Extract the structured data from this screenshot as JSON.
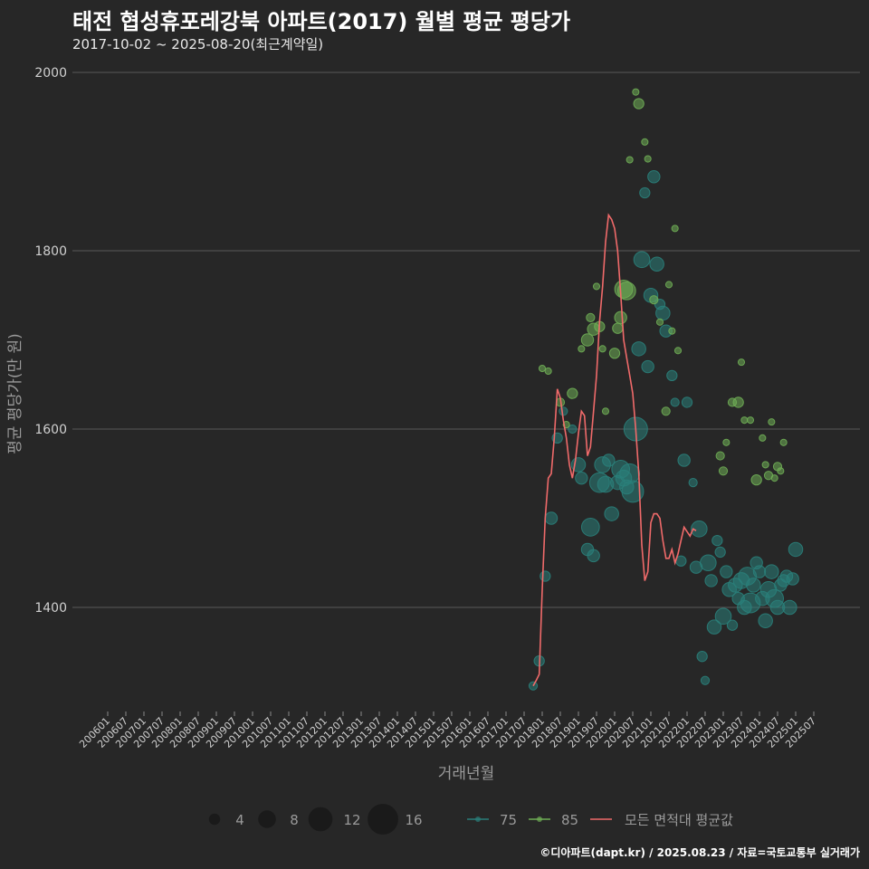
{
  "title": "태전 협성휴포레강북 아파트(2017) 월별 평균 평당가",
  "subtitle": "2017-10-02 ~ 2025-08-20(최근계약일)",
  "footer": "©디아파트(dapt.kr) / 2025.08.23 / 자료=국토교통부 실거래가",
  "colors": {
    "background": "#272727",
    "grid": "#5a5a5a",
    "area75": "#2a7f7a",
    "area85": "#6fae55",
    "avg": "#f06a6a"
  },
  "chart_data": {
    "type": "scatter",
    "xlabel": "거래년월",
    "ylabel": "평균 평당가(만 원)",
    "ylim": [
      1280,
      2010
    ],
    "yticks": [
      1400,
      1600,
      1800,
      2000
    ],
    "xticks": [
      "200601",
      "200607",
      "200701",
      "200707",
      "200801",
      "200807",
      "200901",
      "200907",
      "201001",
      "201007",
      "201101",
      "201107",
      "201201",
      "201207",
      "201301",
      "201307",
      "201401",
      "201407",
      "201501",
      "201507",
      "201601",
      "201607",
      "201701",
      "201707",
      "201801",
      "201807",
      "201901",
      "201907",
      "202001",
      "202007",
      "202101",
      "202107",
      "202201",
      "202207",
      "202301",
      "202307",
      "202401",
      "202407",
      "202501",
      "202507"
    ],
    "legend": {
      "size_title": "",
      "sizes": [
        4,
        8,
        12,
        16
      ],
      "size_labels": [
        "4",
        "8",
        "12",
        "16"
      ],
      "series_labels": [
        "75",
        "85",
        "모든 면적대 평균값"
      ]
    },
    "series": [
      {
        "name": "75",
        "points": [
          [
            "201710",
            1312,
            2
          ],
          [
            "201712",
            1340,
            3
          ],
          [
            "201802",
            1435,
            3
          ],
          [
            "201804",
            1500,
            4
          ],
          [
            "201806",
            1590,
            3
          ],
          [
            "201808",
            1620,
            2
          ],
          [
            "201811",
            1600,
            2
          ],
          [
            "201901",
            1560,
            5
          ],
          [
            "201902",
            1545,
            4
          ],
          [
            "201904",
            1465,
            4
          ],
          [
            "201905",
            1490,
            7
          ],
          [
            "201906",
            1458,
            4
          ],
          [
            "201908",
            1540,
            8
          ],
          [
            "201909",
            1560,
            6
          ],
          [
            "201910",
            1538,
            6
          ],
          [
            "201911",
            1565,
            4
          ],
          [
            "201912",
            1505,
            5
          ],
          [
            "202002",
            1540,
            5
          ],
          [
            "202003",
            1555,
            7
          ],
          [
            "202004",
            1545,
            6
          ],
          [
            "202005",
            1535,
            5
          ],
          [
            "202006",
            1550,
            8
          ],
          [
            "202007",
            1530,
            9
          ],
          [
            "202008",
            1600,
            10
          ],
          [
            "202009",
            1690,
            5
          ],
          [
            "202010",
            1790,
            6
          ],
          [
            "202011",
            1865,
            3
          ],
          [
            "202012",
            1670,
            4
          ],
          [
            "202101",
            1750,
            5
          ],
          [
            "202102",
            1883,
            4
          ],
          [
            "202103",
            1785,
            5
          ],
          [
            "202104",
            1740,
            3
          ],
          [
            "202105",
            1730,
            5
          ],
          [
            "202106",
            1710,
            4
          ],
          [
            "202108",
            1660,
            3
          ],
          [
            "202109",
            1630,
            2
          ],
          [
            "202111",
            1452,
            3
          ],
          [
            "202112",
            1565,
            4
          ],
          [
            "202201",
            1630,
            3
          ],
          [
            "202203",
            1540,
            2
          ],
          [
            "202204",
            1445,
            4
          ],
          [
            "202205",
            1488,
            6
          ],
          [
            "202206",
            1345,
            3
          ],
          [
            "202207",
            1318,
            2
          ],
          [
            "202208",
            1450,
            6
          ],
          [
            "202209",
            1430,
            4
          ],
          [
            "202210",
            1378,
            5
          ],
          [
            "202211",
            1475,
            3
          ],
          [
            "202212",
            1462,
            3
          ],
          [
            "202301",
            1390,
            6
          ],
          [
            "202302",
            1440,
            4
          ],
          [
            "202303",
            1420,
            5
          ],
          [
            "202304",
            1380,
            3
          ],
          [
            "202305",
            1425,
            5
          ],
          [
            "202306",
            1410,
            4
          ],
          [
            "202307",
            1430,
            6
          ],
          [
            "202308",
            1400,
            5
          ],
          [
            "202309",
            1435,
            7
          ],
          [
            "202310",
            1405,
            8
          ],
          [
            "202311",
            1425,
            5
          ],
          [
            "202312",
            1450,
            4
          ],
          [
            "202401",
            1440,
            4
          ],
          [
            "202402",
            1410,
            5
          ],
          [
            "202403",
            1385,
            5
          ],
          [
            "202404",
            1420,
            6
          ],
          [
            "202405",
            1440,
            5
          ],
          [
            "202406",
            1410,
            7
          ],
          [
            "202407",
            1400,
            5
          ],
          [
            "202408",
            1425,
            4
          ],
          [
            "202409",
            1430,
            4
          ],
          [
            "202410",
            1435,
            4
          ],
          [
            "202411",
            1400,
            5
          ],
          [
            "202412",
            1432,
            4
          ],
          [
            "202501",
            1465,
            5
          ]
        ]
      },
      {
        "name": "85",
        "points": [
          [
            "201801",
            1668,
            1
          ],
          [
            "201803",
            1665,
            1
          ],
          [
            "201807",
            1630,
            2
          ],
          [
            "201809",
            1605,
            1
          ],
          [
            "201811",
            1640,
            3
          ],
          [
            "201902",
            1690,
            1
          ],
          [
            "201904",
            1700,
            4
          ],
          [
            "201905",
            1725,
            2
          ],
          [
            "201906",
            1712,
            4
          ],
          [
            "201907",
            1760,
            1
          ],
          [
            "201908",
            1715,
            3
          ],
          [
            "201909",
            1690,
            1
          ],
          [
            "201910",
            1620,
            1
          ],
          [
            "202001",
            1685,
            3
          ],
          [
            "202002",
            1713,
            3
          ],
          [
            "202003",
            1725,
            4
          ],
          [
            "202004",
            1757,
            7
          ],
          [
            "202005",
            1755,
            7
          ],
          [
            "202006",
            1902,
            1
          ],
          [
            "202008",
            1978,
            1
          ],
          [
            "202009",
            1965,
            3
          ],
          [
            "202011",
            1922,
            1
          ],
          [
            "202012",
            1903,
            1
          ],
          [
            "202102",
            1745,
            2
          ],
          [
            "202104",
            1720,
            1
          ],
          [
            "202106",
            1620,
            2
          ],
          [
            "202107",
            1762,
            1
          ],
          [
            "202108",
            1710,
            1
          ],
          [
            "202109",
            1825,
            1
          ],
          [
            "202110",
            1688,
            1
          ],
          [
            "202212",
            1570,
            2
          ],
          [
            "202301",
            1553,
            2
          ],
          [
            "202302",
            1585,
            1
          ],
          [
            "202304",
            1630,
            2
          ],
          [
            "202306",
            1630,
            3
          ],
          [
            "202307",
            1675,
            1
          ],
          [
            "202308",
            1610,
            1
          ],
          [
            "202310",
            1610,
            1
          ],
          [
            "202312",
            1543,
            3
          ],
          [
            "202402",
            1590,
            1
          ],
          [
            "202403",
            1560,
            1
          ],
          [
            "202404",
            1548,
            2
          ],
          [
            "202405",
            1608,
            1
          ],
          [
            "202406",
            1545,
            1
          ],
          [
            "202407",
            1558,
            2
          ],
          [
            "202408",
            1553,
            1
          ],
          [
            "202409",
            1585,
            1
          ]
        ]
      }
    ],
    "avg_line": [
      [
        "201710",
        1312
      ],
      [
        "201711",
        1318
      ],
      [
        "201712",
        1325
      ],
      [
        "201801",
        1420
      ],
      [
        "201802",
        1500
      ],
      [
        "201803",
        1545
      ],
      [
        "201804",
        1550
      ],
      [
        "201805",
        1590
      ],
      [
        "201806",
        1645
      ],
      [
        "201807",
        1635
      ],
      [
        "201808",
        1610
      ],
      [
        "201809",
        1590
      ],
      [
        "201810",
        1560
      ],
      [
        "201811",
        1545
      ],
      [
        "201812",
        1565
      ],
      [
        "201901",
        1595
      ],
      [
        "201902",
        1620
      ],
      [
        "201903",
        1615
      ],
      [
        "201904",
        1570
      ],
      [
        "201905",
        1580
      ],
      [
        "201906",
        1620
      ],
      [
        "201907",
        1660
      ],
      [
        "201908",
        1720
      ],
      [
        "201909",
        1760
      ],
      [
        "201910",
        1810
      ],
      [
        "201911",
        1840
      ],
      [
        "201912",
        1835
      ],
      [
        "202001",
        1825
      ],
      [
        "202002",
        1800
      ],
      [
        "202003",
        1752
      ],
      [
        "202004",
        1700
      ],
      [
        "202005",
        1680
      ],
      [
        "202006",
        1660
      ],
      [
        "202007",
        1640
      ],
      [
        "202008",
        1600
      ],
      [
        "202009",
        1550
      ],
      [
        "202010",
        1470
      ],
      [
        "202011",
        1430
      ],
      [
        "202012",
        1440
      ],
      [
        "202101",
        1495
      ],
      [
        "202102",
        1505
      ],
      [
        "202103",
        1505
      ],
      [
        "202104",
        1500
      ],
      [
        "202105",
        1475
      ],
      [
        "202106",
        1455
      ],
      [
        "202107",
        1455
      ],
      [
        "202108",
        1465
      ],
      [
        "202109",
        1450
      ],
      [
        "202110",
        1460
      ],
      [
        "202111",
        1475
      ],
      [
        "202112",
        1490
      ],
      [
        "202201",
        1485
      ],
      [
        "202202",
        1480
      ],
      [
        "202203",
        1488
      ],
      [
        "202204",
        1486
      ]
    ]
  }
}
